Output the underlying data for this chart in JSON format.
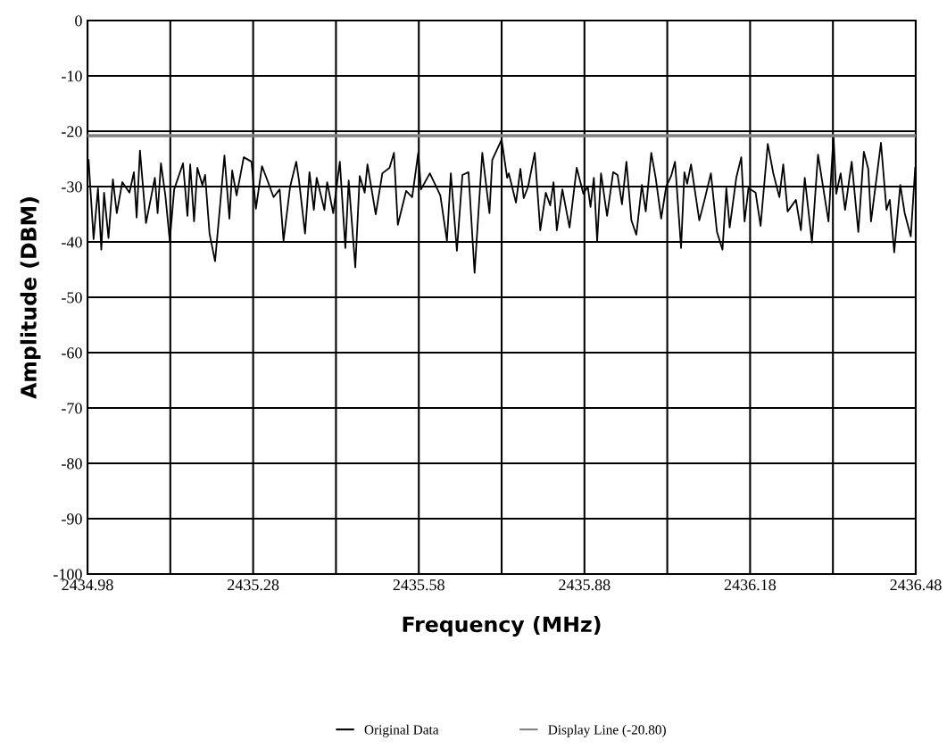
{
  "chart_data": {
    "type": "line",
    "xlabel": "Frequency (MHz)",
    "ylabel": "Amplitude (DBM)",
    "xlim": [
      2434.98,
      2436.48
    ],
    "ylim": [
      -100,
      0
    ],
    "xticks": [
      2434.98,
      {
        "value": 2435.13,
        "label": null
      },
      2435.28,
      {
        "value": 2435.43,
        "label": null
      },
      2435.58,
      {
        "value": 2435.73,
        "label": null
      },
      2435.88,
      {
        "value": 2436.03,
        "label": null
      },
      2436.18,
      {
        "value": 2436.33,
        "label": null
      },
      2436.48
    ],
    "yticks": [
      0,
      -10,
      -20,
      -30,
      -40,
      -50,
      -60,
      -70,
      -80,
      -90,
      -100
    ],
    "grid": true,
    "legend": "bottom",
    "marker": "none",
    "line_style": "solid",
    "ref_lines": [
      {
        "axis": "y",
        "value": -20.8,
        "label": "Display Line (-20.80)",
        "color": "#808080"
      }
    ],
    "series": [
      {
        "name": "Original Data",
        "color": "#000000",
        "x": [
          2434.982,
          2434.991,
          2434.999,
          2435.005,
          2435.01,
          2435.018,
          2435.026,
          2435.033,
          2435.043,
          2435.056,
          2435.064,
          2435.069,
          2435.075,
          2435.086,
          2435.102,
          2435.107,
          2435.113,
          2435.121,
          2435.129,
          2435.137,
          2435.153,
          2435.161,
          2435.166,
          2435.173,
          2435.179,
          2435.188,
          2435.193,
          2435.201,
          2435.211,
          2435.218,
          2435.228,
          2435.237,
          2435.242,
          2435.25,
          2435.263,
          2435.277,
          2435.285,
          2435.296,
          2435.307,
          2435.317,
          2435.328,
          2435.335,
          2435.347,
          2435.358,
          2435.363,
          2435.374,
          2435.382,
          2435.39,
          2435.395,
          2435.409,
          2435.414,
          2435.425,
          2435.437,
          2435.447,
          2435.453,
          2435.465,
          2435.473,
          2435.482,
          2435.487,
          2435.502,
          2435.514,
          2435.527,
          2435.535,
          2435.542,
          2435.557,
          2435.568,
          2435.579,
          2435.584,
          2435.6,
          2435.619,
          2435.631,
          2435.638,
          2435.649,
          2435.659,
          2435.67,
          2435.681,
          2435.695,
          2435.708,
          2435.713,
          2435.73,
          2435.74,
          2435.743,
          2435.756,
          2435.764,
          2435.77,
          2435.778,
          2435.79,
          2435.8,
          2435.81,
          2435.818,
          2435.824,
          2435.83,
          2435.84,
          2435.853,
          2435.866,
          2435.878,
          2435.886,
          2435.891,
          2435.897,
          2435.903,
          2435.91,
          2435.921,
          2435.932,
          2435.94,
          2435.948,
          2435.956,
          2435.965,
          2435.974,
          2435.984,
          2435.991,
          2436.001,
          2436.009,
          2436.019,
          2436.028,
          2436.037,
          2436.044,
          2436.055,
          2436.061,
          2436.066,
          2436.073,
          2436.088,
          2436.097,
          2436.109,
          2436.12,
          2436.13,
          2436.137,
          2436.143,
          2436.155,
          2436.164,
          2436.17,
          2436.177,
          2436.19,
          2436.199,
          2436.212,
          2436.222,
          2436.233,
          2436.24,
          2436.248,
          2436.263,
          2436.272,
          2436.279,
          2436.292,
          2436.303,
          2436.322,
          2436.331,
          2436.336,
          2436.344,
          2436.352,
          2436.364,
          2436.376,
          2436.386,
          2436.394,
          2436.399,
          2436.417,
          2436.427,
          2436.433,
          2436.441,
          2436.452,
          2436.46,
          2436.471,
          2436.479
        ],
        "values": [
          -25.2,
          -39.5,
          -30.3,
          -41.4,
          -31.1,
          -39.3,
          -28.7,
          -34.8,
          -29.2,
          -31.1,
          -27.4,
          -35.6,
          -23.5,
          -36.6,
          -28.4,
          -34.8,
          -25.8,
          -31.6,
          -39.8,
          -30.5,
          -25.8,
          -35.3,
          -26.0,
          -36.3,
          -26.6,
          -29.7,
          -27.9,
          -38.5,
          -43.5,
          -35.8,
          -24.4,
          -35.8,
          -27.1,
          -31.6,
          -24.7,
          -25.5,
          -34.0,
          -26.3,
          -29.2,
          -31.9,
          -30.5,
          -39.8,
          -30.0,
          -25.5,
          -28.9,
          -38.5,
          -27.4,
          -34.2,
          -28.4,
          -34.2,
          -29.2,
          -34.8,
          -25.5,
          -41.1,
          -28.9,
          -44.6,
          -28.1,
          -31.1,
          -26.0,
          -35.0,
          -27.6,
          -26.6,
          -23.9,
          -36.9,
          -30.8,
          -31.9,
          -23.9,
          -30.5,
          -27.6,
          -31.6,
          -39.8,
          -27.6,
          -41.6,
          -27.9,
          -27.4,
          -45.6,
          -23.9,
          -34.8,
          -25.2,
          -21.5,
          -28.4,
          -27.6,
          -32.9,
          -26.8,
          -32.1,
          -30.0,
          -23.9,
          -37.9,
          -31.1,
          -33.4,
          -29.2,
          -37.9,
          -30.5,
          -37.4,
          -26.6,
          -31.3,
          -30.0,
          -33.7,
          -28.4,
          -39.8,
          -27.6,
          -35.3,
          -27.4,
          -27.9,
          -33.2,
          -25.5,
          -36.1,
          -38.7,
          -29.7,
          -34.5,
          -23.9,
          -28.4,
          -35.8,
          -30.0,
          -28.1,
          -25.5,
          -41.1,
          -27.4,
          -29.5,
          -26.0,
          -36.1,
          -32.6,
          -27.6,
          -38.2,
          -41.4,
          -30.3,
          -37.4,
          -28.4,
          -24.7,
          -36.3,
          -30.3,
          -31.1,
          -37.1,
          -22.3,
          -27.6,
          -31.9,
          -26.0,
          -34.5,
          -32.4,
          -37.9,
          -28.4,
          -40.1,
          -24.2,
          -36.3,
          -20.7,
          -31.3,
          -27.6,
          -34.2,
          -25.5,
          -38.2,
          -23.7,
          -26.8,
          -36.3,
          -22.1,
          -34.2,
          -32.4,
          -41.9,
          -29.7,
          -34.8,
          -39.0,
          -26.6
        ]
      }
    ]
  }
}
